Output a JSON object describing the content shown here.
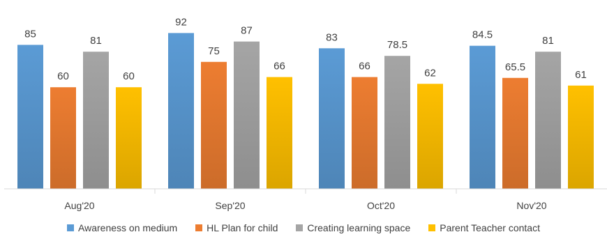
{
  "chart_data": {
    "type": "bar",
    "title": "",
    "categories": [
      "Aug'20",
      "Sep'20",
      "Oct'20",
      "Nov'20"
    ],
    "series": [
      {
        "name": "Awareness on medium",
        "values": [
          85,
          92,
          83,
          84.5
        ],
        "color": "#5b9bd5"
      },
      {
        "name": "HL Plan for child",
        "values": [
          60,
          75,
          66,
          65.5
        ],
        "color": "#ed7d31"
      },
      {
        "name": "Creating learning space",
        "values": [
          81,
          87,
          78.5,
          81
        ],
        "color": "#a5a5a5"
      },
      {
        "name": "Parent Teacher contact",
        "values": [
          60,
          66,
          62,
          61
        ],
        "color": "#ffc000"
      }
    ],
    "value_labels": [
      [
        "85",
        "92",
        "83",
        "84.5"
      ],
      [
        "60",
        "75",
        "66",
        "65.5"
      ],
      [
        "81",
        "87",
        "78.5",
        "81"
      ],
      [
        "60",
        "66",
        "62",
        "61"
      ]
    ],
    "ylim": [
      0,
      100
    ],
    "grid": false,
    "legend_position": "bottom"
  }
}
